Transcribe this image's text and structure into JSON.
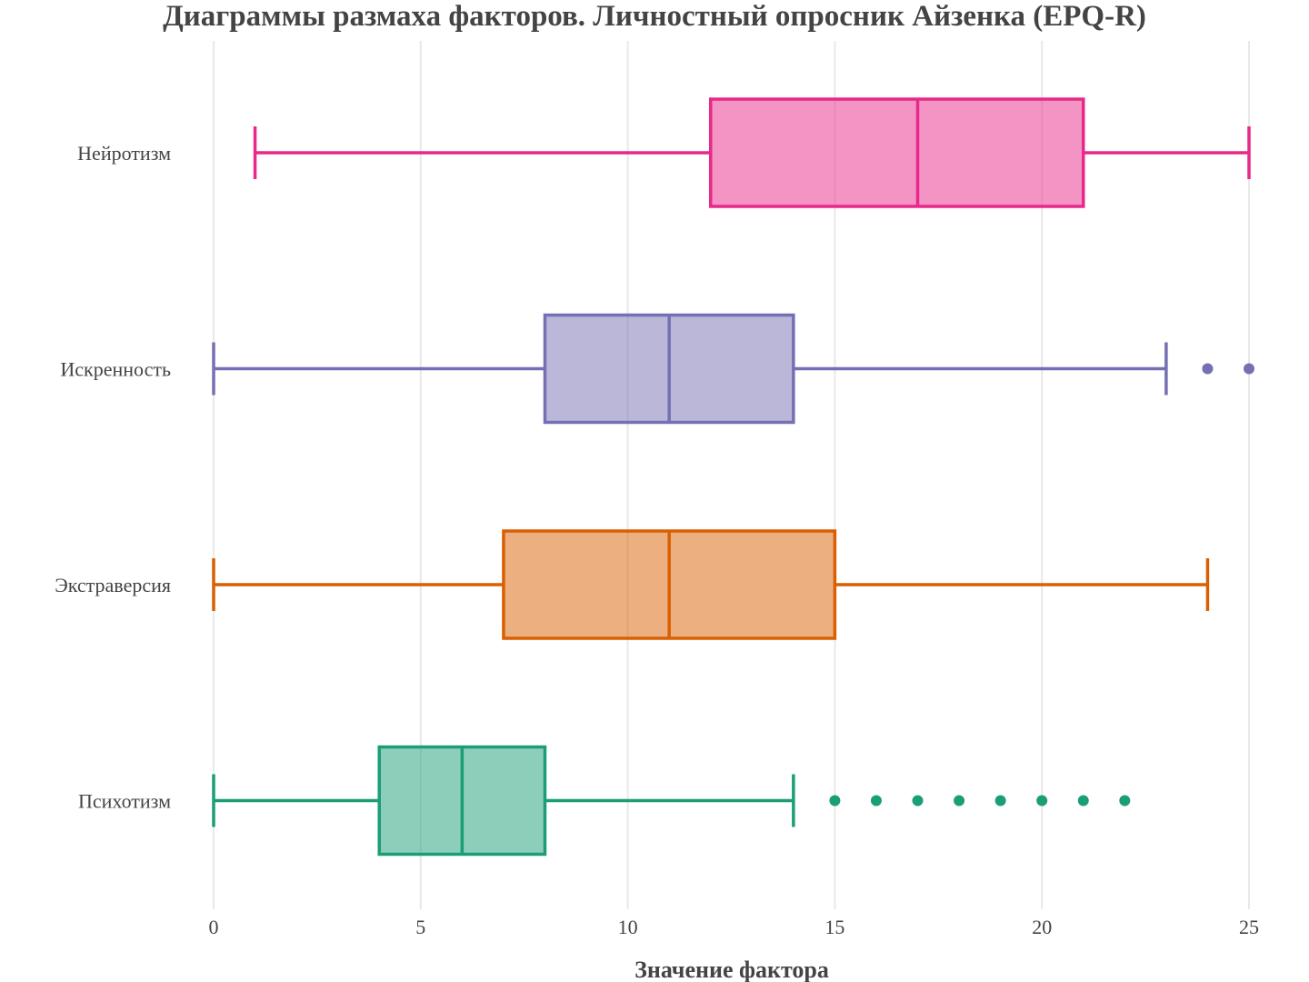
{
  "chart_data": {
    "type": "box",
    "orientation": "horizontal",
    "title": "Диаграммы размаха факторов. Личностный опросник Айзенка (EPQ-R)",
    "xlabel": "Значение фактора",
    "ylabel": "",
    "xlim": [
      -0.6,
      25.6
    ],
    "xticks": [
      0,
      5,
      10,
      15,
      20,
      25
    ],
    "grid": "vertical",
    "legend": "none",
    "series": [
      {
        "name": "Нейротизм",
        "color": "#e7298a",
        "whisker_low": 1,
        "q1": 12,
        "median": 17,
        "q3": 21,
        "whisker_high": 25,
        "outliers": []
      },
      {
        "name": "Искренность",
        "color": "#7570b3",
        "whisker_low": 0,
        "q1": 8,
        "median": 11,
        "q3": 14,
        "whisker_high": 23,
        "outliers": [
          24,
          25
        ]
      },
      {
        "name": "Экстраверсия",
        "color": "#d95f02",
        "whisker_low": 0,
        "q1": 7,
        "median": 11,
        "q3": 15,
        "whisker_high": 24,
        "outliers": []
      },
      {
        "name": "Психотизм",
        "color": "#1b9e77",
        "whisker_low": 0,
        "q1": 4,
        "median": 6,
        "q3": 8,
        "whisker_high": 14,
        "outliers": [
          15,
          16,
          17,
          18,
          19,
          20,
          21,
          22
        ]
      }
    ]
  }
}
